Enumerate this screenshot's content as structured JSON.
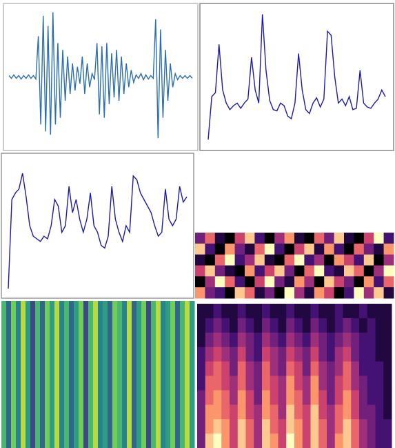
{
  "chart_data": [
    {
      "type": "line",
      "color": "#2a6db0",
      "ylim": [
        -1,
        1
      ],
      "values": [
        0.02,
        -0.02,
        0.03,
        -0.02,
        0.02,
        -0.03,
        0.02,
        -0.02,
        0.03,
        -0.02,
        0.02,
        -0.03,
        0.6,
        -0.7,
        0.9,
        -0.8,
        0.75,
        -0.85,
        0.95,
        -0.7,
        0.5,
        -0.6,
        0.4,
        -0.35,
        0.3,
        -0.25,
        0.2,
        -0.2,
        0.15,
        -0.1,
        0.3,
        -0.25,
        0.2,
        -0.15,
        0.05,
        -0.04,
        0.5,
        -0.55,
        0.45,
        -0.6,
        0.5,
        -0.4,
        0.35,
        -0.3,
        0.4,
        -0.35,
        0.3,
        -0.25,
        0.2,
        -0.15,
        0.1,
        -0.08,
        0.03,
        -0.02,
        0.05,
        -0.04,
        0.03,
        -0.03,
        0.02,
        -0.02,
        0.85,
        -0.9,
        0.7,
        -0.6,
        0.4,
        -0.35,
        0.2,
        -0.15,
        0.05,
        -0.04,
        0.02,
        -0.02,
        0.02,
        -0.02,
        0.02,
        -0.02
      ]
    },
    {
      "type": "line",
      "color": "#1a1aa8",
      "ylim": [
        0,
        1
      ],
      "values": [
        0.02,
        0.35,
        0.38,
        0.75,
        0.4,
        0.3,
        0.25,
        0.28,
        0.3,
        0.26,
        0.3,
        0.33,
        0.65,
        0.4,
        0.3,
        0.98,
        0.55,
        0.32,
        0.25,
        0.24,
        0.3,
        0.28,
        0.2,
        0.18,
        0.3,
        0.68,
        0.4,
        0.25,
        0.22,
        0.3,
        0.34,
        0.27,
        0.33,
        0.85,
        0.82,
        0.5,
        0.3,
        0.33,
        0.28,
        0.35,
        0.25,
        0.26,
        0.55,
        0.3,
        0.27,
        0.26,
        0.3,
        0.33,
        0.4,
        0.35
      ]
    },
    {
      "type": "line",
      "color": "#1a1aa8",
      "ylim": [
        0,
        1
      ],
      "values": [
        0.02,
        0.7,
        0.75,
        0.78,
        0.9,
        0.72,
        0.5,
        0.42,
        0.4,
        0.38,
        0.42,
        0.4,
        0.5,
        0.7,
        0.65,
        0.45,
        0.5,
        0.8,
        0.6,
        0.7,
        0.55,
        0.45,
        0.55,
        0.75,
        0.5,
        0.45,
        0.35,
        0.33,
        0.42,
        0.8,
        0.55,
        0.45,
        0.38,
        0.5,
        0.45,
        0.88,
        0.85,
        0.75,
        0.7,
        0.65,
        0.6,
        0.5,
        0.42,
        0.45,
        0.78,
        0.55,
        0.5,
        0.55,
        0.8,
        0.68,
        0.72
      ]
    },
    {
      "type": "heatmap",
      "vlim": [
        0,
        9
      ],
      "colors": [
        "#000004",
        "#3b0f70",
        "#8c2981",
        "#de4968",
        "#fe9f6d",
        "#fcfdbf"
      ],
      "values": [
        [
          3,
          6,
          1,
          0,
          5,
          8,
          2,
          0,
          4,
          7,
          1,
          0,
          6,
          3,
          8,
          1,
          0,
          5,
          9,
          2
        ],
        [
          8,
          2,
          0,
          7,
          3,
          1,
          6,
          9,
          2,
          0,
          5,
          8,
          1,
          7,
          2,
          0,
          6,
          3,
          1,
          7
        ],
        [
          1,
          0,
          6,
          9,
          2,
          4,
          8,
          1,
          0,
          6,
          9,
          2,
          4,
          0,
          7,
          5,
          2,
          8,
          0,
          4
        ],
        [
          5,
          8,
          3,
          1,
          0,
          7,
          2,
          5,
          8,
          3,
          0,
          6,
          9,
          2,
          1,
          8,
          6,
          0,
          4,
          9
        ],
        [
          0,
          4,
          9,
          6,
          2,
          0,
          5,
          9,
          3,
          1,
          7,
          4,
          0,
          8,
          5,
          3,
          0,
          7,
          2,
          6
        ],
        [
          7,
          3,
          2,
          0,
          8,
          6,
          1,
          3,
          0,
          9,
          4,
          1,
          7,
          5,
          0,
          2,
          9,
          4,
          8,
          1
        ]
      ]
    },
    {
      "type": "heatmap",
      "vlim": [
        0,
        9
      ],
      "colors": [
        "#440154",
        "#3b528b",
        "#21918c",
        "#5ec962",
        "#fde725"
      ],
      "values": [
        [
          6,
          3,
          7,
          4,
          8,
          5,
          2,
          6,
          3,
          7,
          5,
          8,
          4,
          6,
          3,
          5,
          7,
          2,
          6,
          8,
          4,
          5,
          3,
          7,
          6,
          4,
          8,
          3,
          5,
          7,
          2,
          6,
          8,
          4,
          5,
          7,
          3,
          6,
          8,
          5
        ]
      ]
    },
    {
      "type": "heatmap",
      "vlim": [
        0,
        9
      ],
      "colors": [
        "#000004",
        "#3b0f70",
        "#8c2981",
        "#de4968",
        "#fe9f6d",
        "#fcfdbf"
      ],
      "values": [
        [
          1,
          1,
          2,
          1,
          1,
          2,
          1,
          1,
          2,
          1,
          1,
          2,
          1,
          1,
          2,
          1,
          1,
          2,
          1,
          1,
          2,
          1,
          1,
          1
        ],
        [
          1,
          2,
          3,
          2,
          1,
          3,
          2,
          1,
          3,
          2,
          1,
          3,
          2,
          1,
          3,
          2,
          1,
          2,
          3,
          2,
          1,
          2,
          1,
          1
        ],
        [
          1,
          3,
          4,
          3,
          2,
          4,
          3,
          2,
          4,
          3,
          2,
          4,
          3,
          2,
          4,
          3,
          2,
          3,
          4,
          3,
          2,
          2,
          1,
          1
        ],
        [
          2,
          4,
          5,
          4,
          3,
          5,
          3,
          2,
          5,
          4,
          3,
          5,
          4,
          3,
          5,
          3,
          2,
          4,
          5,
          3,
          2,
          2,
          1,
          1
        ],
        [
          2,
          5,
          6,
          5,
          3,
          6,
          4,
          3,
          6,
          4,
          3,
          6,
          5,
          3,
          6,
          4,
          3,
          4,
          6,
          4,
          2,
          2,
          2,
          1
        ],
        [
          2,
          6,
          6,
          5,
          4,
          6,
          4,
          3,
          6,
          5,
          4,
          7,
          5,
          4,
          7,
          4,
          3,
          5,
          6,
          4,
          3,
          2,
          2,
          1
        ],
        [
          3,
          6,
          7,
          6,
          4,
          7,
          5,
          3,
          7,
          5,
          4,
          7,
          6,
          4,
          7,
          5,
          3,
          5,
          7,
          5,
          3,
          2,
          2,
          1
        ],
        [
          3,
          7,
          7,
          6,
          5,
          7,
          5,
          4,
          7,
          6,
          4,
          8,
          6,
          5,
          8,
          5,
          4,
          6,
          7,
          5,
          3,
          3,
          2,
          1
        ],
        [
          3,
          7,
          8,
          7,
          5,
          8,
          6,
          4,
          8,
          6,
          5,
          8,
          7,
          5,
          8,
          6,
          4,
          6,
          8,
          6,
          4,
          3,
          2,
          2
        ],
        [
          3,
          8,
          9,
          7,
          5,
          8,
          6,
          4,
          8,
          7,
          5,
          9,
          7,
          5,
          8,
          6,
          4,
          7,
          8,
          6,
          4,
          3,
          2,
          2
        ]
      ]
    }
  ]
}
